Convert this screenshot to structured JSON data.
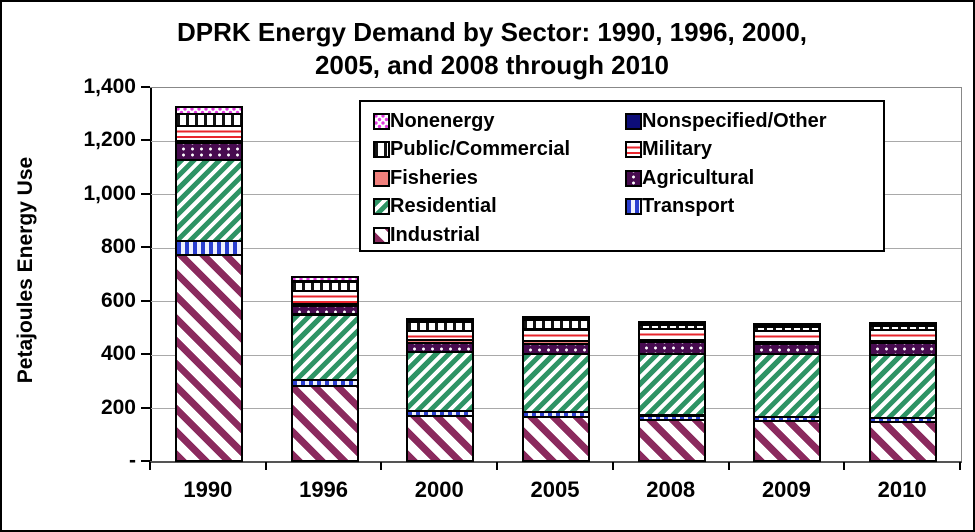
{
  "title": {
    "line1": "DPRK Energy Demand by Sector: 1990, 1996, 2000,",
    "line2": "2005, and 2008 through 2010"
  },
  "y_axis": {
    "title": "Petajoules Energy Use",
    "tick_labels": [
      "1,400",
      "1,200",
      "1,000",
      "800",
      "600",
      "400",
      "200",
      "-"
    ],
    "max": 1400,
    "step": 200
  },
  "chart_data": {
    "type": "bar",
    "stacked": true,
    "title": "DPRK Energy Demand by Sector: 1990, 1996, 2000, 2005, and 2008 through 2010",
    "ylabel": "Petajoules Energy Use",
    "ylim": [
      0,
      1400
    ],
    "grid": true,
    "legend_position": "inside-top-right",
    "categories": [
      "1990",
      "1996",
      "2000",
      "2005",
      "2008",
      "2009",
      "2010"
    ],
    "series": [
      {
        "key": "industrial",
        "name": "Industrial",
        "pattern": "maroon-diagonal-stripes",
        "color": "#8b2a5e",
        "values": [
          770,
          280,
          170,
          165,
          155,
          150,
          147
        ]
      },
      {
        "key": "transport",
        "name": "Transport",
        "pattern": "blue-vertical-stripes",
        "color": "#2b3fd0",
        "values": [
          53,
          25,
          18,
          17,
          16,
          15,
          15
        ]
      },
      {
        "key": "residential",
        "name": "Residential",
        "pattern": "green-diagonal-stripes",
        "color": "#2e9465",
        "values": [
          305,
          245,
          220,
          218,
          230,
          235,
          235
        ]
      },
      {
        "key": "agricultural",
        "name": "Agricultural",
        "pattern": "purple-with-white-dots",
        "color": "#470b4f",
        "values": [
          65,
          30,
          35,
          38,
          45,
          38,
          45
        ]
      },
      {
        "key": "fisheries",
        "name": "Fisheries",
        "pattern": "solid-salmon",
        "color": "#f0807c",
        "values": [
          5,
          8,
          10,
          12,
          7,
          6,
          6
        ]
      },
      {
        "key": "military",
        "name": "Military",
        "pattern": "red-horizontal-lines",
        "color": "#e8262d",
        "values": [
          55,
          48,
          35,
          43,
          41,
          43,
          42
        ]
      },
      {
        "key": "public_commercial",
        "name": "Public/Commercial",
        "pattern": "black-vertical-lines",
        "color": "#141414",
        "values": [
          45,
          35,
          35,
          35,
          16,
          15,
          15
        ]
      },
      {
        "key": "nonspecified",
        "name": "Nonspecified/Other",
        "pattern": "solid-navy",
        "color": "#0d0d78",
        "values": [
          2,
          2,
          2,
          3,
          4,
          4,
          4
        ]
      },
      {
        "key": "nonenergy",
        "name": "Nonenergy",
        "pattern": "magenta-dots",
        "color": "#e23ae2",
        "values": [
          28,
          15,
          5,
          5,
          4,
          4,
          4
        ]
      }
    ],
    "totals": [
      1328,
      688,
      530,
      536,
      518,
      510,
      513
    ],
    "legend_order": [
      "nonenergy",
      "nonspecified",
      "public_commercial",
      "military",
      "fisheries",
      "agricultural",
      "residential",
      "transport",
      "industrial"
    ]
  }
}
